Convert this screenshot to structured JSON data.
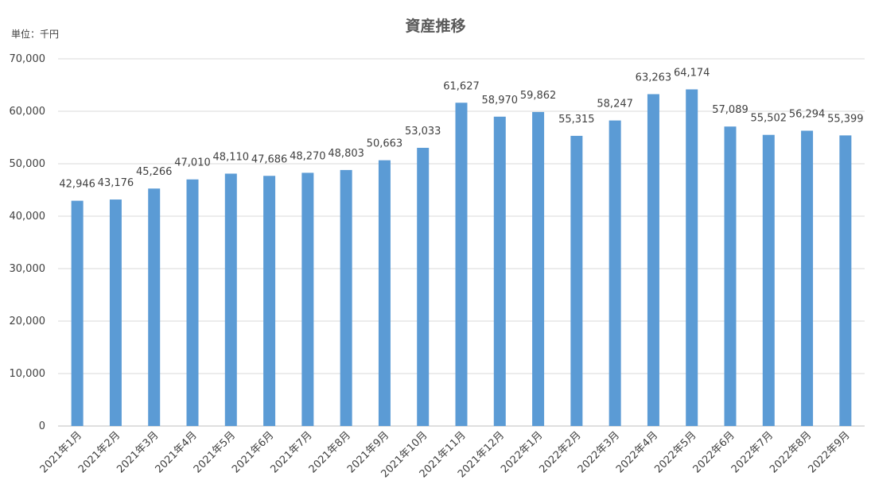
{
  "chart_data": {
    "type": "bar",
    "title": "資産推移",
    "unit_label": "単位：千円",
    "categories": [
      "2021年1月",
      "2021年2月",
      "2021年3月",
      "2021年4月",
      "2021年5月",
      "2021年6月",
      "2021年7月",
      "2021年8月",
      "2021年9月",
      "2021年10月",
      "2021年11月",
      "2021年12月",
      "2022年1月",
      "2022年2月",
      "2022年3月",
      "2022年4月",
      "2022年5月",
      "2022年6月",
      "2022年7月",
      "2022年8月",
      "2022年9月"
    ],
    "values": [
      42946,
      43176,
      45266,
      47010,
      48110,
      47686,
      48270,
      48803,
      50663,
      53033,
      61627,
      58970,
      59862,
      55315,
      58247,
      63263,
      64174,
      57089,
      55502,
      56294,
      55399
    ],
    "value_labels": [
      "42,946",
      "43,176",
      "45,266",
      "47,010",
      "48,110",
      "47,686",
      "48,270",
      "48,803",
      "50,663",
      "53,033",
      "61,627",
      "58,970",
      "59,862",
      "55,315",
      "58,247",
      "63,263",
      "64,174",
      "57,089",
      "55,502",
      "56,294",
      "55,399"
    ],
    "ylim": [
      0,
      70000
    ],
    "yticks": [
      0,
      10000,
      20000,
      30000,
      40000,
      50000,
      60000,
      70000
    ],
    "ytick_labels": [
      "0",
      "10,000",
      "20,000",
      "30,000",
      "40,000",
      "50,000",
      "60,000",
      "70,000"
    ],
    "grid": true,
    "bar_color": "#5b9bd5",
    "grid_color": "#d9d9d9"
  }
}
